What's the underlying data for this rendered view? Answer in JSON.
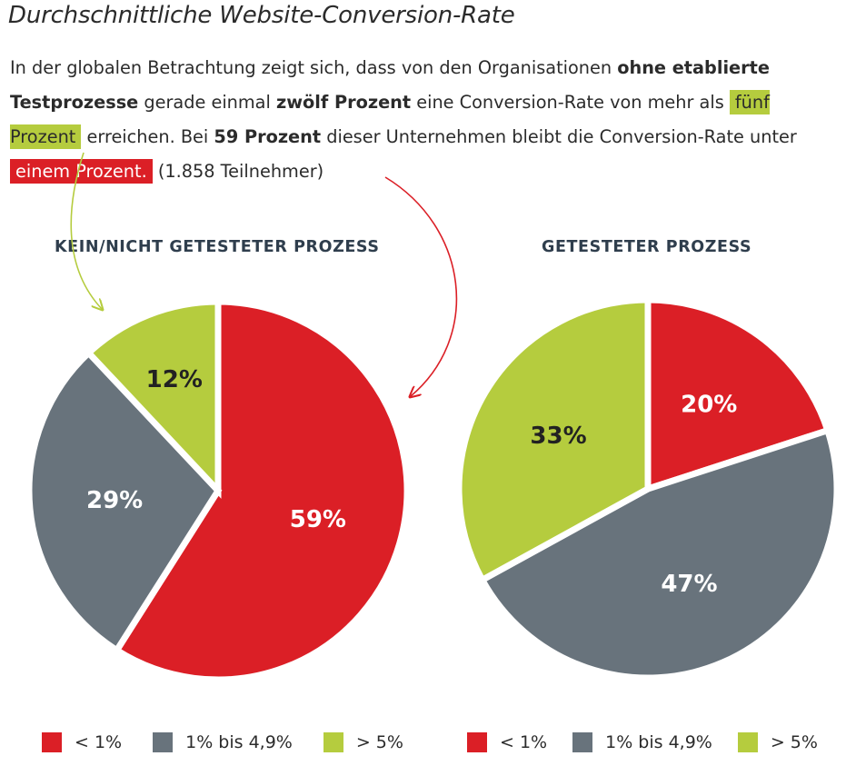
{
  "title": "Durchschnittliche Website-Conversion-Rate",
  "intro": {
    "t1": "In der globalen Betrachtung zeigt sich, dass von den Organisationen ",
    "b1": "ohne etablierte Testprozesse",
    "t2": " gerade einmal ",
    "b2": "zwölf Prozent",
    "t3": " eine Conversion-Rate von mehr als ",
    "hl1": "fünf Prozent",
    "t4": " erreichen. Bei ",
    "b3": "59 Prozent",
    "t5": " dieser Unternehmen bleibt die Conversion-Rate unter ",
    "hl2": "einem Prozent.",
    "t6": " (1.858 Teilnehmer)"
  },
  "colors": {
    "red": "#db1f26",
    "gray": "#68737c",
    "green": "#b5cc3e",
    "title_blue": "#2f3e4d"
  },
  "chart_data": [
    {
      "type": "pie",
      "title": "KEIN/NICHT GETESTETER PROZESS",
      "slices": [
        {
          "label": "< 1%",
          "value": 59,
          "display": "59%",
          "color": "#db1f26"
        },
        {
          "label": "1% bis 4,9%",
          "value": 29,
          "display": "29%",
          "color": "#68737c"
        },
        {
          "label": "> 5%",
          "value": 12,
          "display": "12%",
          "color": "#b5cc3e"
        }
      ],
      "legend": [
        "< 1%",
        "1% bis 4,9%",
        "> 5%"
      ]
    },
    {
      "type": "pie",
      "title": "GETESTETER PROZESS",
      "slices": [
        {
          "label": "< 1%",
          "value": 20,
          "display": "20%",
          "color": "#db1f26"
        },
        {
          "label": "1% bis 4,9%",
          "value": 47,
          "display": "47%",
          "color": "#68737c"
        },
        {
          "label": "> 5%",
          "value": 33,
          "display": "33%",
          "color": "#b5cc3e"
        }
      ],
      "legend": [
        "< 1%",
        "1% bis 4,9%",
        "> 5%"
      ]
    }
  ]
}
